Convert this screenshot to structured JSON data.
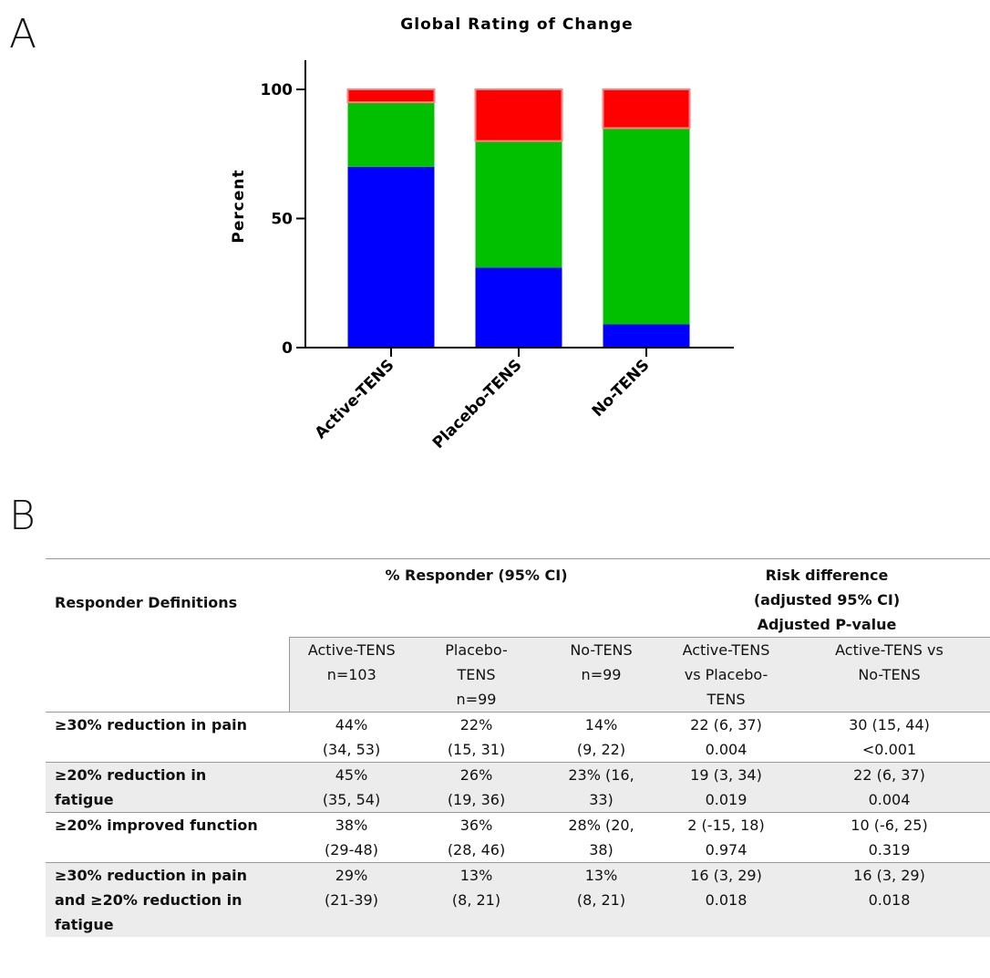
{
  "panels": {
    "a": "A",
    "b": "B"
  },
  "chart_data": {
    "type": "bar",
    "stacked": true,
    "title": "Global Rating of Change",
    "ylabel": "Percent",
    "xlabel": "",
    "ylim": [
      0,
      100
    ],
    "yticks": [
      0,
      50,
      100
    ],
    "categories": [
      "Active-TENS",
      "Placebo-TENS",
      "No-TENS"
    ],
    "series": [
      {
        "color": "#0000ff",
        "values": [
          70,
          31,
          9
        ]
      },
      {
        "color": "#00c000",
        "values": [
          25,
          49,
          76
        ]
      },
      {
        "color": "#ff0000",
        "values": [
          5,
          20,
          15
        ]
      }
    ],
    "grid": false,
    "legend": "none"
  },
  "table": {
    "col_def_header": "Responder Definitions",
    "group_responder": "% Responder (95% CI)",
    "group_risk": [
      "Risk difference",
      "(adjusted 95% CI)",
      "Adjusted P-value"
    ],
    "sub_headers": [
      [
        "Active-TENS",
        "n=103"
      ],
      [
        "Placebo-",
        "TENS",
        "n=99"
      ],
      [
        "No-TENS",
        "n=99"
      ],
      [
        "Active-TENS",
        "vs Placebo-",
        "TENS"
      ],
      [
        "Active-TENS vs",
        "No-TENS"
      ]
    ],
    "rows": [
      {
        "label": [
          "≥30% reduction in pain"
        ],
        "cells": [
          [
            "44%",
            "(34, 53)"
          ],
          [
            "22%",
            "(15, 31)"
          ],
          [
            "14%",
            "(9, 22)"
          ],
          [
            "22 (6, 37)",
            "0.004"
          ],
          [
            "30 (15, 44)",
            "<0.001"
          ]
        ],
        "shaded": false
      },
      {
        "label": [
          "≥20% reduction in",
          "fatigue"
        ],
        "cells": [
          [
            "45%",
            "(35, 54)"
          ],
          [
            "26%",
            "(19, 36)"
          ],
          [
            "23% (16,",
            "33)"
          ],
          [
            "19 (3, 34)",
            "0.019"
          ],
          [
            "22 (6, 37)",
            "0.004"
          ]
        ],
        "shaded": true
      },
      {
        "label": [
          "≥20% improved function"
        ],
        "cells": [
          [
            "38%",
            "(29-48)"
          ],
          [
            "36%",
            "(28, 46)"
          ],
          [
            "28% (20,",
            "38)"
          ],
          [
            "2 (-15, 18)",
            "0.974"
          ],
          [
            "10 (-6, 25)",
            "0.319"
          ]
        ],
        "shaded": false
      },
      {
        "label": [
          "≥30% reduction in pain",
          "and ≥20% reduction in",
          "fatigue"
        ],
        "cells": [
          [
            "29%",
            "(21-39)"
          ],
          [
            "13%",
            "(8, 21)"
          ],
          [
            "13%",
            "(8, 21)"
          ],
          [
            "16 (3, 29)",
            "0.018"
          ],
          [
            "16 (3, 29)",
            "0.018"
          ]
        ],
        "shaded": true
      }
    ]
  }
}
